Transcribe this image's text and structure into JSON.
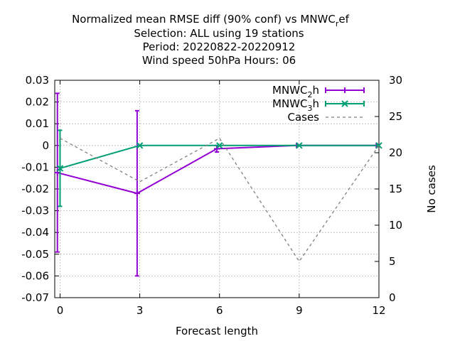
{
  "chart_data": {
    "type": "line",
    "title_lines": [
      "Normalized mean RMSE diff (90% conf) vs MNWC",
      "Selection: ALL using    19 stations",
      "Period: 20220822-20220912",
      "Wind speed 50hPa   Hours:  06"
    ],
    "title_suffix": {
      "sub": "r",
      "text": "ef"
    },
    "xlabel": "Forecast length",
    "ylabel": "",
    "y2label": "No cases",
    "xlim": [
      -0.2,
      12
    ],
    "ylim": [
      -0.07,
      0.03
    ],
    "y2lim": [
      0,
      30
    ],
    "x_ticks": [
      0,
      3,
      6,
      9,
      12
    ],
    "x_tick_labels": [
      "0",
      "3",
      "6",
      "9",
      "12"
    ],
    "y_ticks": [
      -0.07,
      -0.06,
      -0.05,
      -0.04,
      -0.03,
      -0.02,
      -0.01,
      0,
      0.01,
      0.02,
      0.03
    ],
    "y_tick_labels": [
      "-0.07",
      "-0.06",
      "-0.05",
      "-0.04",
      "-0.03",
      "-0.02",
      "-0.01",
      "0",
      "0.01",
      "0.02",
      "0.03"
    ],
    "y2_ticks": [
      0,
      5,
      10,
      15,
      20,
      25,
      30
    ],
    "y2_tick_labels": [
      "0",
      "5",
      "10",
      "15",
      "20",
      "25",
      "30"
    ],
    "grid": true,
    "legend_position": "top-right",
    "series": [
      {
        "name_main": "MNWC",
        "name_sub": "2",
        "name_suffix": "h",
        "color": "#9400d3",
        "marker": "plus",
        "axis": "y",
        "x": [
          -0.1,
          2.9,
          5.9,
          8.9,
          11.9
        ],
        "values": [
          -0.0125,
          -0.022,
          -0.0015,
          0.0,
          0.0
        ],
        "err_low": [
          -0.049,
          -0.06,
          -0.003,
          0.0,
          0.0
        ],
        "err_high": [
          0.024,
          0.016,
          0.0,
          0.0,
          0.0
        ]
      },
      {
        "name_main": "MNWC",
        "name_sub": "3",
        "name_suffix": "h",
        "color": "#009e73",
        "marker": "x",
        "axis": "y",
        "x": [
          0,
          3,
          6,
          9,
          12
        ],
        "values": [
          -0.0105,
          0.0,
          0.0,
          0.0,
          0.0
        ],
        "err_low": [
          -0.028,
          0.0,
          0.0,
          0.0,
          0.0
        ],
        "err_high": [
          0.007,
          0.0,
          0.0,
          0.0,
          0.0
        ]
      },
      {
        "name": "Cases",
        "color": "#808080",
        "dashed": true,
        "axis": "y2",
        "x": [
          0,
          3,
          6,
          9,
          12
        ],
        "values": [
          22,
          16,
          22,
          5,
          21
        ]
      }
    ]
  }
}
